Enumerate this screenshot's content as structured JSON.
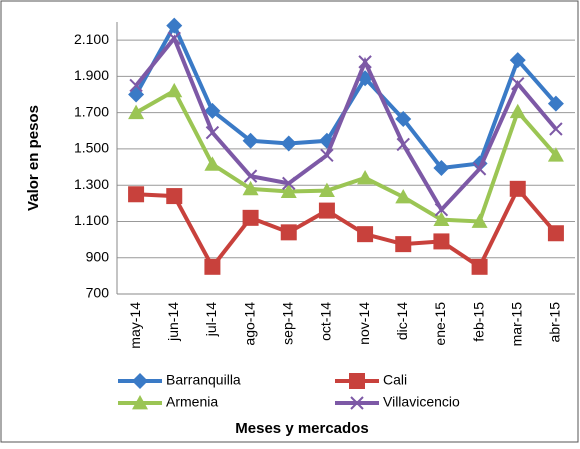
{
  "chart_data": {
    "type": "line",
    "x_label": "Meses y mercados",
    "y_label": "Valor en pesos",
    "categories": [
      "may-14",
      "jun-14",
      "jul-14",
      "ago-14",
      "sep-14",
      "oct-14",
      "nov-14",
      "dic-14",
      "ene-15",
      "feb-15",
      "mar-15",
      "abr-15"
    ],
    "series": [
      {
        "name": "Barranquilla",
        "color": "#3a7ac6",
        "marker": "diamond",
        "values": [
          1800,
          2180,
          1710,
          1545,
          1530,
          1545,
          1890,
          1665,
          1395,
          1420,
          1990,
          1750
        ]
      },
      {
        "name": "Cali",
        "color": "#c8413c",
        "marker": "square",
        "values": [
          1250,
          1240,
          850,
          1120,
          1040,
          1160,
          1030,
          975,
          990,
          850,
          1280,
          1035
        ]
      },
      {
        "name": "Armenia",
        "color": "#9bc554",
        "marker": "triangle",
        "values": [
          1700,
          1820,
          1415,
          1280,
          1265,
          1270,
          1340,
          1235,
          1110,
          1100,
          1705,
          1465
        ]
      },
      {
        "name": "Villavicencio",
        "color": "#7d59a6",
        "marker": "x",
        "values": [
          1850,
          2110,
          1590,
          1350,
          1310,
          1465,
          1980,
          1525,
          1165,
          1390,
          1860,
          1610
        ]
      }
    ],
    "ylim": [
      700,
      2200
    ],
    "yticks": [
      {
        "value": 700,
        "label": "700"
      },
      {
        "value": 900,
        "label": "900"
      },
      {
        "value": 1100,
        "label": "1.100"
      },
      {
        "value": 1300,
        "label": "1.300"
      },
      {
        "value": 1500,
        "label": "1.500"
      },
      {
        "value": 1700,
        "label": "1.700"
      },
      {
        "value": 1900,
        "label": "1.900"
      },
      {
        "value": 2100,
        "label": "2.100"
      }
    ],
    "grid": true
  }
}
